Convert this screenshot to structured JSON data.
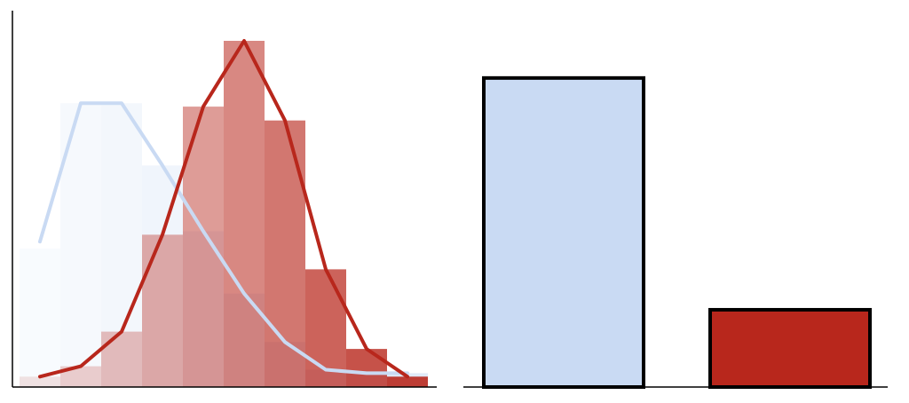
{
  "colors": {
    "light_series": "#c9daf3",
    "red_series": "#b8271c",
    "axis": "#000000",
    "background": "#ffffff"
  },
  "chart_data": [
    {
      "type": "histogram",
      "title": "",
      "xlabel": "",
      "ylabel": "",
      "bins": 10,
      "x_edges": [
        0,
        1,
        2,
        3,
        4,
        5,
        6,
        7,
        8,
        9,
        10
      ],
      "ylim": [
        0,
        100
      ],
      "series": [
        {
          "color": "#c9daf3",
          "counts": [
            40,
            82,
            82,
            64,
            45,
            27,
            13,
            5,
            4,
            4
          ],
          "smoothed": [
            42,
            82,
            82,
            64,
            45,
            27,
            13,
            5,
            4,
            4
          ]
        },
        {
          "color": "#b8271c",
          "counts": [
            3,
            6,
            16,
            44,
            81,
            100,
            77,
            34,
            11,
            3
          ],
          "smoothed": [
            3,
            6,
            16,
            44,
            81,
            100,
            77,
            34,
            11,
            3
          ]
        }
      ],
      "grid": false,
      "legend": "none"
    },
    {
      "type": "bar",
      "title": "",
      "xlabel": "",
      "ylabel": "",
      "categories": [
        "",
        ""
      ],
      "values": [
        100,
        25
      ],
      "colors": [
        "#c9daf3",
        "#b8271c"
      ],
      "ylim": [
        0,
        108
      ],
      "grid": false,
      "legend": "none"
    }
  ]
}
